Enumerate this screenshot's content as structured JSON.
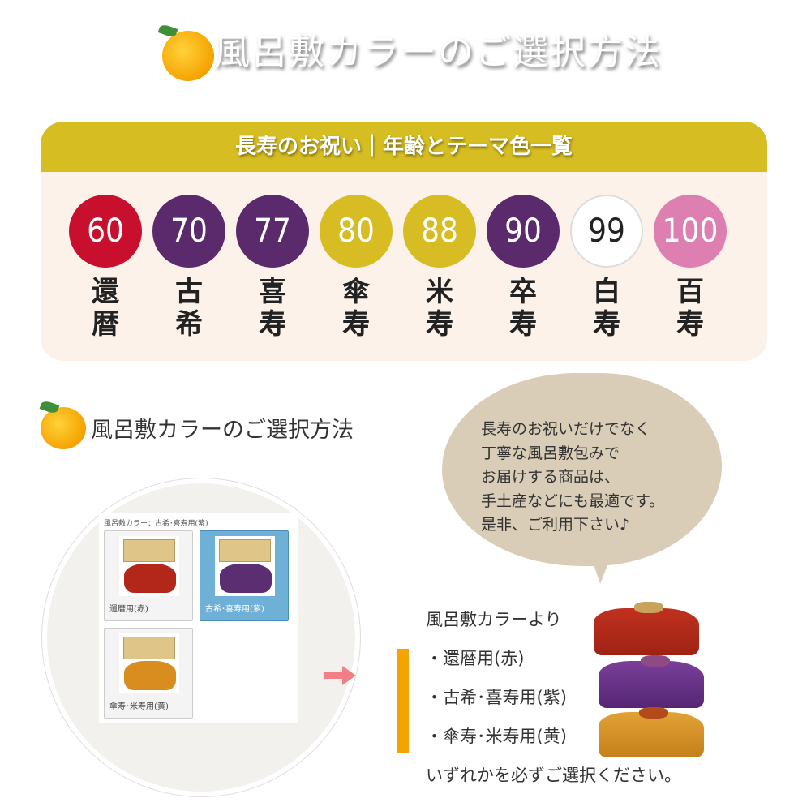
{
  "title": "風呂敷カラーのご選択方法",
  "panel": {
    "header": "長寿のお祝い｜年齢とテーマ色一覧",
    "ages": [
      {
        "age": "60",
        "name": "還暦",
        "color": "#c8102e",
        "text": "#ffffff"
      },
      {
        "age": "70",
        "name": "古希",
        "color": "#5a2a6d",
        "text": "#ffffff"
      },
      {
        "age": "77",
        "name": "喜寿",
        "color": "#5a2a6d",
        "text": "#ffffff"
      },
      {
        "age": "80",
        "name": "傘寿",
        "color": "#d7bc24",
        "text": "#ffffff"
      },
      {
        "age": "88",
        "name": "米寿",
        "color": "#d7bc24",
        "text": "#ffffff"
      },
      {
        "age": "90",
        "name": "卒寿",
        "color": "#5a2a6d",
        "text": "#ffffff"
      },
      {
        "age": "99",
        "name": "白寿",
        "color": "#ffffff",
        "text": "#222222"
      },
      {
        "age": "100",
        "name": "百寿",
        "color": "#de7fb2",
        "text": "#ffffff"
      }
    ]
  },
  "section_title": "風呂敷カラーのご選択方法",
  "selector": {
    "label": "風呂敷カラー：古希･喜寿用(紫)",
    "options": [
      {
        "label": "還暦用(赤)",
        "color": "#b3261a",
        "selected": false
      },
      {
        "label": "古希･喜寿用(紫)",
        "color": "#5b2e72",
        "selected": true
      },
      {
        "label": "傘寿･米寿用(黄)",
        "color": "#d88d1e",
        "selected": false
      }
    ]
  },
  "bubble": [
    "長寿のお祝いだけでなく",
    "丁寧な風呂敷包みで",
    "お届けする商品は、",
    "手土産などにも最適です。",
    "是非、ご利用下さい♪"
  ],
  "list": {
    "intro": "風呂敷カラーより",
    "items": [
      "・還暦用(赤)",
      "・古希･喜寿用(紫)",
      "・傘寿･米寿用(黄)"
    ],
    "outro": "いずれかを必ずご選択ください。"
  }
}
